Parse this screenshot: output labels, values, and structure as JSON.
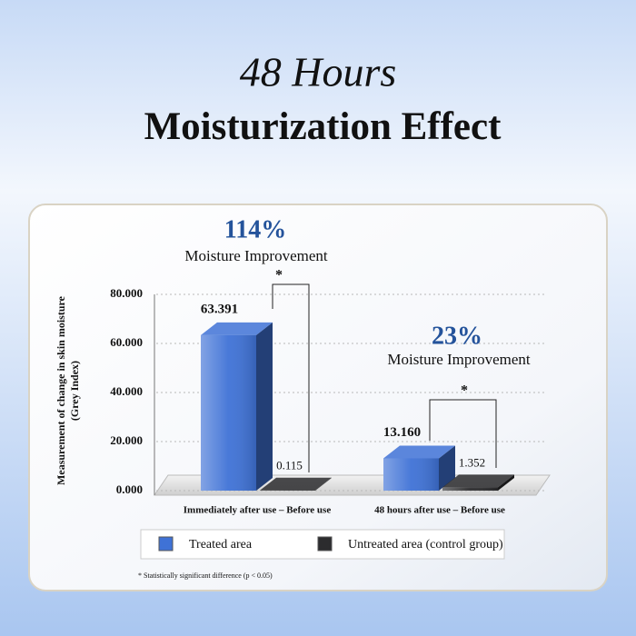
{
  "chart_data": {
    "type": "bar3d",
    "title": "48 Hours",
    "subtitle": "Moisturization Effect",
    "y_label": "Measurement of change in skin moisture (Grey Index)",
    "categories": [
      "Immediately after use – Before use",
      "48 hours after use – Before use"
    ],
    "series": [
      {
        "name": "Treated area",
        "color": "#3f72d6",
        "values": [
          63.391,
          13.16
        ],
        "value_labels": [
          "63.391",
          "13.160"
        ]
      },
      {
        "name": "Untreated area (control group)",
        "color": "#2c2c2e",
        "values": [
          0.115,
          1.352
        ],
        "value_labels": [
          "0.115",
          "1.352"
        ]
      }
    ],
    "ylim": [
      0,
      80
    ],
    "yticks": [
      {
        "value": 0,
        "label": "0.000"
      },
      {
        "value": 20,
        "label": "20.000"
      },
      {
        "value": 40,
        "label": "40.000"
      },
      {
        "value": 60,
        "label": "60.000"
      },
      {
        "value": 80,
        "label": "80.000"
      }
    ],
    "grid": true,
    "annotations": [
      {
        "percent": "114%",
        "text": "Moisture Improvement",
        "marker": "*"
      },
      {
        "percent": "23%",
        "text": "Moisture Improvement",
        "marker": "*"
      }
    ],
    "footnote": "* Statistically significant difference (p < 0.05)"
  }
}
